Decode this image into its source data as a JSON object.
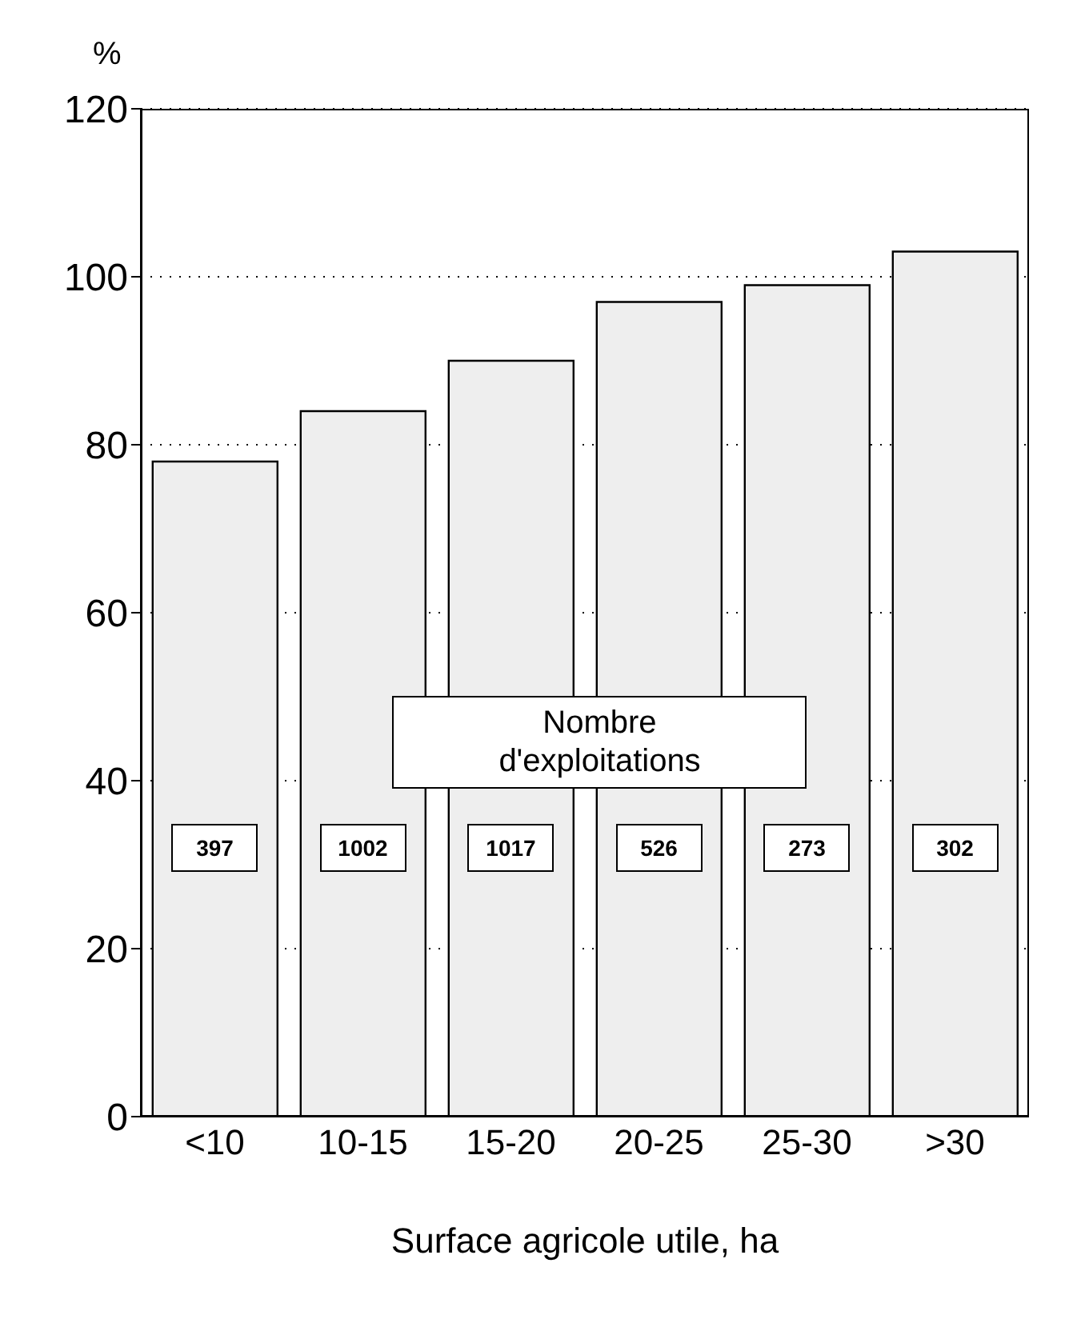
{
  "chart_data": {
    "type": "bar",
    "xlabel": "Surface agricole utile, ha",
    "ylabel": "%",
    "categories": [
      "<10",
      "10-15",
      "15-20",
      "20-25",
      "25-30",
      ">30"
    ],
    "values": [
      78,
      84,
      90,
      97,
      99,
      103
    ],
    "color": "#eeeeee",
    "ylim": [
      0,
      120
    ],
    "yticks": [
      0,
      20,
      40,
      60,
      80,
      100,
      120
    ],
    "grid": "y",
    "annotations": [
      "Nombre d'exploitations",
      "397",
      "1002",
      "1017",
      "526",
      "273",
      "302"
    ]
  }
}
